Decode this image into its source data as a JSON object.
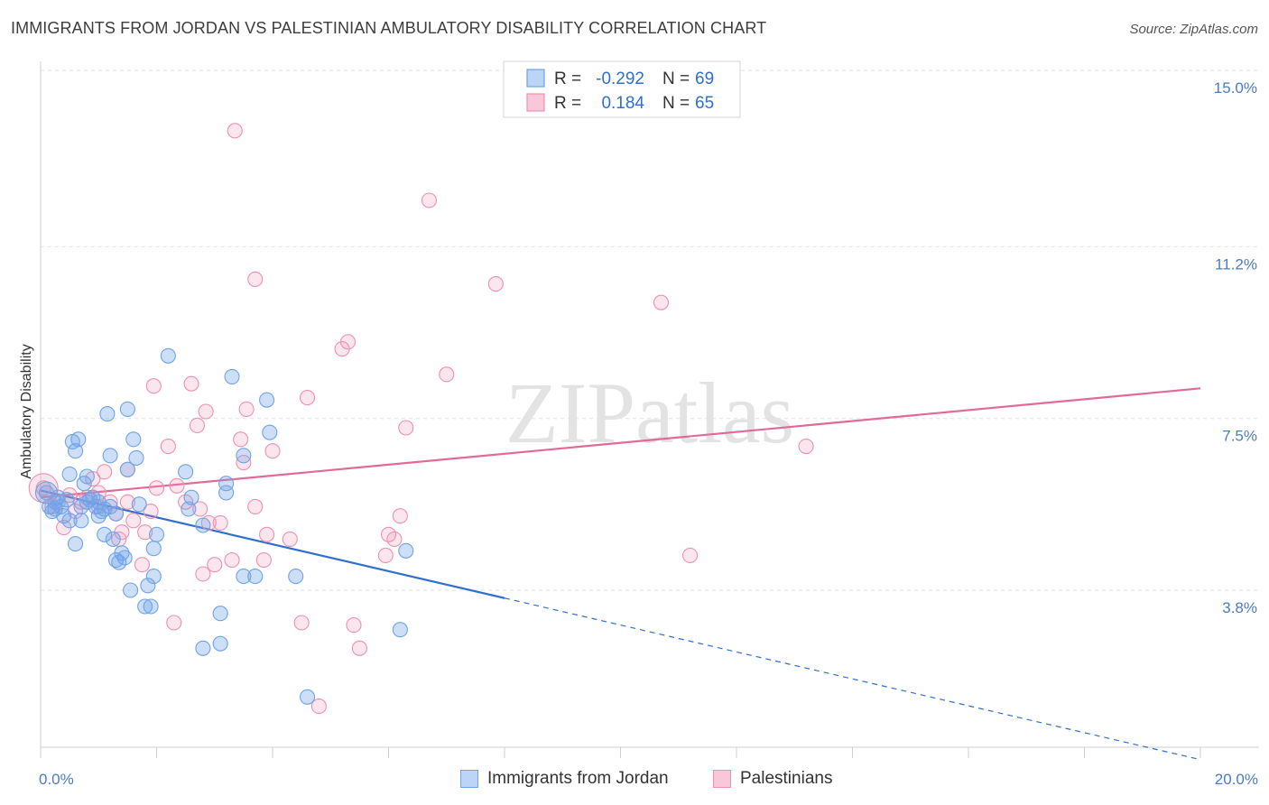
{
  "chart_data": {
    "type": "scatter",
    "title": "IMMIGRANTS FROM JORDAN VS PALESTINIAN AMBULATORY DISABILITY CORRELATION CHART",
    "source": "Source: ZipAtlas.com",
    "xlabel": "",
    "ylabel": "Ambulatory Disability",
    "xlim": [
      0,
      20
    ],
    "ylim": [
      0,
      15.5
    ],
    "x_ticks": [
      0,
      20
    ],
    "x_tick_labels": [
      "0.0%",
      "20.0%"
    ],
    "y_ticks": [
      3.8,
      7.5,
      11.2,
      15.0
    ],
    "y_tick_labels": [
      "3.8%",
      "7.5%",
      "11.2%",
      "15.0%"
    ],
    "watermark": "ZIPatlas",
    "colors": {
      "jordan": "#6fa3e8",
      "palestinians": "#f08fb0",
      "jordan_line": "#2f6fcf",
      "pal_line": "#e06b98"
    },
    "legend": {
      "entries": [
        {
          "r_label": "R =",
          "r_value": "-0.292",
          "n_label": "N =",
          "n_value": "69"
        },
        {
          "r_label": "R =",
          "r_value": "0.184",
          "n_label": "N =",
          "n_value": "65"
        }
      ]
    },
    "series": [
      {
        "name": "Immigrants from Jordan",
        "points": [
          [
            0.1,
            5.9
          ],
          [
            0.15,
            5.6
          ],
          [
            0.2,
            5.5
          ],
          [
            0.25,
            5.7
          ],
          [
            0.3,
            5.8
          ],
          [
            0.35,
            5.6
          ],
          [
            0.4,
            5.4
          ],
          [
            0.45,
            5.75
          ],
          [
            0.5,
            6.3
          ],
          [
            0.5,
            5.3
          ],
          [
            0.55,
            7.0
          ],
          [
            0.6,
            6.8
          ],
          [
            0.6,
            4.8
          ],
          [
            0.65,
            7.05
          ],
          [
            0.7,
            5.6
          ],
          [
            0.75,
            6.1
          ],
          [
            0.8,
            5.7
          ],
          [
            0.8,
            6.25
          ],
          [
            0.85,
            5.75
          ],
          [
            0.9,
            5.8
          ],
          [
            0.95,
            5.6
          ],
          [
            1.0,
            5.7
          ],
          [
            1.0,
            5.4
          ],
          [
            1.05,
            5.5
          ],
          [
            1.1,
            5.0
          ],
          [
            1.15,
            7.6
          ],
          [
            1.2,
            6.7
          ],
          [
            1.2,
            5.6
          ],
          [
            1.25,
            4.9
          ],
          [
            1.3,
            5.45
          ],
          [
            1.35,
            4.4
          ],
          [
            1.4,
            4.6
          ],
          [
            1.45,
            4.5
          ],
          [
            1.5,
            6.4
          ],
          [
            1.5,
            7.7
          ],
          [
            1.55,
            3.8
          ],
          [
            1.6,
            7.05
          ],
          [
            1.65,
            6.65
          ],
          [
            1.7,
            5.65
          ],
          [
            1.8,
            3.45
          ],
          [
            1.85,
            3.9
          ],
          [
            1.9,
            3.45
          ],
          [
            1.95,
            4.7
          ],
          [
            1.95,
            4.1
          ],
          [
            2.0,
            5.0
          ],
          [
            2.2,
            8.85
          ],
          [
            2.5,
            6.35
          ],
          [
            2.55,
            5.55
          ],
          [
            2.6,
            5.8
          ],
          [
            2.8,
            5.2
          ],
          [
            2.8,
            2.55
          ],
          [
            3.1,
            3.3
          ],
          [
            3.1,
            2.65
          ],
          [
            3.2,
            5.9
          ],
          [
            3.2,
            6.1
          ],
          [
            3.3,
            8.4
          ],
          [
            3.5,
            6.7
          ],
          [
            3.5,
            4.1
          ],
          [
            3.7,
            4.1
          ],
          [
            3.9,
            7.9
          ],
          [
            3.95,
            7.2
          ],
          [
            4.4,
            4.1
          ],
          [
            4.6,
            1.5
          ],
          [
            6.2,
            2.95
          ],
          [
            6.3,
            4.65
          ],
          [
            0.25,
            5.55
          ],
          [
            0.7,
            5.3
          ],
          [
            1.3,
            4.45
          ],
          [
            1.1,
            5.55
          ]
        ]
      },
      {
        "name": "Palestinians",
        "points": [
          [
            0.05,
            6.0
          ],
          [
            0.2,
            5.6
          ],
          [
            0.3,
            5.7
          ],
          [
            0.4,
            5.15
          ],
          [
            0.5,
            5.85
          ],
          [
            0.6,
            5.5
          ],
          [
            0.7,
            5.7
          ],
          [
            0.8,
            5.8
          ],
          [
            0.9,
            6.2
          ],
          [
            1.0,
            5.6
          ],
          [
            1.0,
            5.9
          ],
          [
            1.1,
            6.35
          ],
          [
            1.2,
            5.7
          ],
          [
            1.3,
            5.45
          ],
          [
            1.35,
            4.9
          ],
          [
            1.4,
            5.05
          ],
          [
            1.5,
            6.4
          ],
          [
            1.5,
            5.7
          ],
          [
            1.6,
            5.3
          ],
          [
            1.75,
            4.35
          ],
          [
            1.8,
            5.05
          ],
          [
            1.9,
            5.5
          ],
          [
            1.95,
            8.2
          ],
          [
            2.0,
            6.0
          ],
          [
            2.2,
            6.9
          ],
          [
            2.3,
            3.1
          ],
          [
            2.35,
            6.05
          ],
          [
            2.5,
            5.7
          ],
          [
            2.6,
            8.25
          ],
          [
            2.7,
            7.35
          ],
          [
            2.75,
            5.55
          ],
          [
            2.8,
            4.15
          ],
          [
            2.85,
            7.65
          ],
          [
            2.9,
            5.25
          ],
          [
            3.0,
            4.35
          ],
          [
            3.1,
            5.25
          ],
          [
            3.3,
            4.45
          ],
          [
            3.35,
            13.7
          ],
          [
            3.45,
            7.05
          ],
          [
            3.5,
            6.55
          ],
          [
            3.55,
            7.7
          ],
          [
            3.7,
            5.6
          ],
          [
            3.7,
            10.5
          ],
          [
            3.85,
            4.45
          ],
          [
            3.9,
            5.0
          ],
          [
            4.0,
            6.8
          ],
          [
            4.3,
            4.9
          ],
          [
            4.5,
            3.1
          ],
          [
            4.6,
            7.95
          ],
          [
            4.8,
            1.3
          ],
          [
            5.2,
            9.0
          ],
          [
            5.3,
            9.15
          ],
          [
            5.4,
            3.05
          ],
          [
            5.5,
            2.55
          ],
          [
            5.95,
            4.55
          ],
          [
            6.0,
            5.0
          ],
          [
            6.1,
            4.9
          ],
          [
            6.2,
            5.4
          ],
          [
            6.3,
            7.3
          ],
          [
            6.7,
            12.2
          ],
          [
            7.0,
            8.45
          ],
          [
            7.85,
            10.4
          ],
          [
            10.7,
            10.0
          ],
          [
            11.2,
            4.55
          ],
          [
            13.2,
            6.9
          ]
        ]
      }
    ],
    "trendlines": [
      {
        "series": "Immigrants from Jordan",
        "x0": 0,
        "y0": 5.95,
        "x_solid_end": 8.0,
        "x1": 20,
        "y1": 0.15
      },
      {
        "series": "Palestinians",
        "x0": 0,
        "y0": 5.8,
        "x1": 20,
        "y1": 8.15
      }
    ]
  }
}
